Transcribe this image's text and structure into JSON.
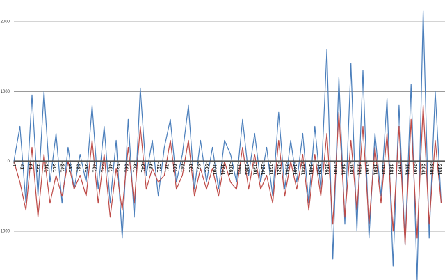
{
  "chart_data": {
    "type": "line",
    "x": [
      1,
      31,
      61,
      91,
      121,
      151,
      181,
      211,
      241,
      271,
      301,
      331,
      361,
      391,
      421,
      451,
      481,
      511,
      541,
      571,
      601,
      631,
      661,
      691,
      721,
      751,
      781,
      811,
      841,
      871,
      901,
      931,
      961,
      991,
      1021,
      1051,
      1081,
      1111,
      1141,
      1171,
      1201,
      1231,
      1261,
      1291,
      1321,
      1351,
      1381,
      1411,
      1441,
      1471,
      1501,
      1531,
      1561,
      1591,
      1621,
      1651,
      1681,
      1711,
      1741,
      1771,
      1801,
      1831,
      1861,
      1891,
      1921,
      1951,
      1981,
      2011,
      2041,
      2071,
      2101,
      2131
    ],
    "series": [
      {
        "color": "#4a7ebb",
        "values": [
          0,
          500,
          -600,
          950,
          -500,
          1000,
          -300,
          400,
          -600,
          200,
          -400,
          100,
          -300,
          800,
          -400,
          500,
          -600,
          300,
          -1100,
          600,
          -800,
          1050,
          -200,
          300,
          -500,
          200,
          600,
          -300,
          100,
          800,
          -400,
          300,
          -300,
          200,
          -400,
          300,
          100,
          -300,
          600,
          -200,
          400,
          -300,
          200,
          -500,
          700,
          -400,
          300,
          -300,
          400,
          -600,
          500,
          -400,
          1600,
          -1400,
          1200,
          -900,
          1400,
          -1000,
          1300,
          -1100,
          400,
          -500,
          900,
          -1500,
          800,
          -1200,
          1100,
          -1700,
          2150,
          -1100,
          1000,
          -600
        ]
      },
      {
        "color": "#be4b48",
        "values": [
          0,
          -300,
          -700,
          200,
          -800,
          100,
          -600,
          -200,
          -500,
          0,
          -400,
          -200,
          -500,
          300,
          -600,
          100,
          -800,
          -100,
          -700,
          200,
          -600,
          500,
          -400,
          -100,
          -300,
          -200,
          300,
          -400,
          -200,
          300,
          -500,
          -100,
          -400,
          -100,
          -500,
          0,
          -300,
          -400,
          200,
          -400,
          100,
          -400,
          -200,
          -600,
          300,
          -500,
          0,
          -400,
          100,
          -700,
          100,
          -500,
          400,
          -900,
          700,
          -800,
          300,
          -700,
          500,
          -900,
          200,
          -600,
          400,
          -1000,
          500,
          -1200,
          600,
          -1100,
          800,
          -900,
          300,
          -600
        ]
      }
    ],
    "xlim": [
      1,
      2150
    ],
    "xticks": [
      1,
      41,
      81,
      121,
      161,
      201,
      241,
      281,
      321,
      361,
      401,
      441,
      481,
      521,
      561,
      601,
      641,
      681,
      721,
      761,
      801,
      841,
      881,
      921,
      961,
      1001,
      1041,
      1081,
      1121,
      1161,
      1201,
      1241,
      1281,
      1321,
      1361,
      1401,
      1441,
      1481,
      1521,
      1561,
      1601,
      1641,
      1681,
      1721,
      1761,
      1801,
      1841,
      1881,
      1921,
      1961,
      2001,
      2041,
      2081,
      2121
    ],
    "ylim": [
      -1700,
      2310
    ],
    "yticks": [
      -1000,
      0,
      1000,
      2000
    ],
    "grid": true
  }
}
